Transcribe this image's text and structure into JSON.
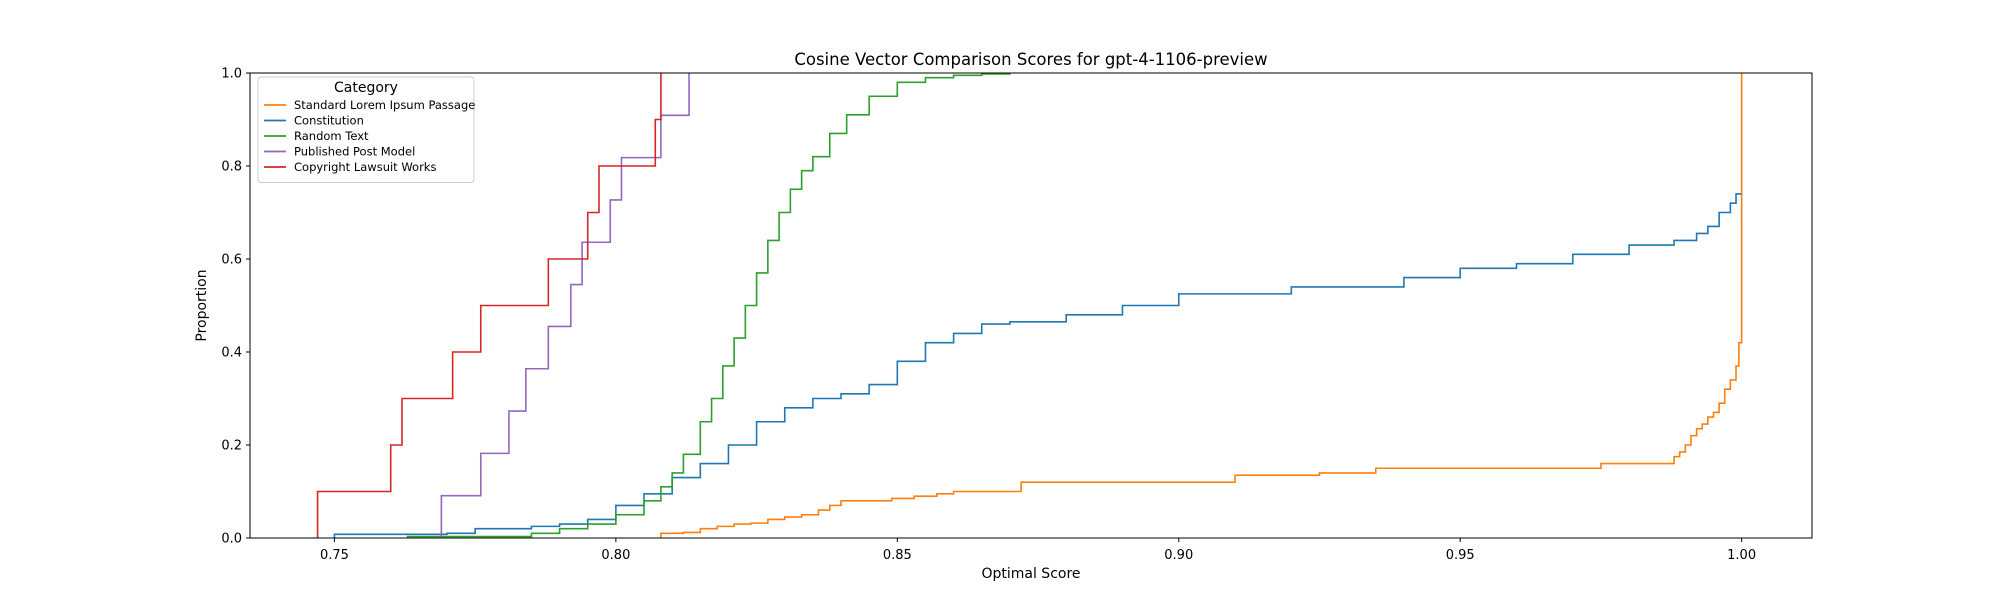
{
  "chart_data": {
    "type": "line",
    "title": "Cosine Vector Comparison Scores for gpt-4-1106-preview",
    "xlabel": "Optimal Score",
    "ylabel": "Proportion",
    "xlim": [
      0.735,
      1.0125
    ],
    "ylim": [
      0.0,
      1.0
    ],
    "xticks": [
      "0.75",
      "0.80",
      "0.85",
      "0.90",
      "0.95",
      "1.00"
    ],
    "yticks": [
      "0.0",
      "0.2",
      "0.4",
      "0.6",
      "0.8",
      "1.0"
    ],
    "grid": false,
    "step": true,
    "legend": {
      "title": "Category",
      "position": "top-left"
    },
    "series": [
      {
        "name": "Standard Lorem Ipsum Passage",
        "color": "#ff7f0e",
        "x": [
          0.808,
          0.812,
          0.815,
          0.818,
          0.821,
          0.824,
          0.827,
          0.83,
          0.833,
          0.836,
          0.838,
          0.84,
          0.845,
          0.849,
          0.853,
          0.857,
          0.86,
          0.866,
          0.872,
          0.885,
          0.895,
          0.905,
          0.91,
          0.925,
          0.935,
          0.95,
          0.963,
          0.975,
          0.986,
          0.988,
          0.989,
          0.99,
          0.991,
          0.992,
          0.993,
          0.994,
          0.995,
          0.996,
          0.997,
          0.998,
          0.999,
          0.9995,
          1.0
        ],
        "y": [
          0.01,
          0.012,
          0.02,
          0.025,
          0.03,
          0.032,
          0.04,
          0.045,
          0.05,
          0.06,
          0.07,
          0.08,
          0.08,
          0.085,
          0.09,
          0.095,
          0.1,
          0.1,
          0.12,
          0.12,
          0.12,
          0.12,
          0.135,
          0.14,
          0.15,
          0.15,
          0.15,
          0.16,
          0.16,
          0.175,
          0.185,
          0.2,
          0.22,
          0.235,
          0.245,
          0.26,
          0.27,
          0.29,
          0.32,
          0.34,
          0.37,
          0.42,
          1.0
        ]
      },
      {
        "name": "Constitution",
        "color": "#1f77b4",
        "x": [
          0.75,
          0.77,
          0.775,
          0.785,
          0.79,
          0.795,
          0.8,
          0.805,
          0.81,
          0.815,
          0.82,
          0.825,
          0.83,
          0.835,
          0.84,
          0.845,
          0.85,
          0.855,
          0.86,
          0.865,
          0.87,
          0.88,
          0.89,
          0.9,
          0.92,
          0.94,
          0.95,
          0.96,
          0.97,
          0.98,
          0.988,
          0.992,
          0.994,
          0.996,
          0.998,
          0.999,
          1.0
        ],
        "y": [
          0.008,
          0.01,
          0.02,
          0.025,
          0.03,
          0.04,
          0.07,
          0.095,
          0.13,
          0.16,
          0.2,
          0.25,
          0.28,
          0.3,
          0.31,
          0.33,
          0.38,
          0.42,
          0.44,
          0.46,
          0.465,
          0.48,
          0.5,
          0.525,
          0.54,
          0.56,
          0.58,
          0.59,
          0.61,
          0.63,
          0.64,
          0.655,
          0.67,
          0.7,
          0.72,
          0.74,
          0.74
        ]
      },
      {
        "name": "Random Text",
        "color": "#2ca02c",
        "x": [
          0.763,
          0.785,
          0.79,
          0.795,
          0.8,
          0.805,
          0.808,
          0.81,
          0.812,
          0.815,
          0.817,
          0.819,
          0.821,
          0.823,
          0.825,
          0.827,
          0.829,
          0.831,
          0.833,
          0.835,
          0.838,
          0.841,
          0.845,
          0.85,
          0.855,
          0.86,
          0.865,
          0.87
        ],
        "y": [
          0.003,
          0.01,
          0.02,
          0.03,
          0.05,
          0.08,
          0.11,
          0.14,
          0.18,
          0.25,
          0.3,
          0.37,
          0.43,
          0.5,
          0.57,
          0.64,
          0.7,
          0.75,
          0.79,
          0.82,
          0.87,
          0.91,
          0.95,
          0.98,
          0.99,
          0.995,
          0.998,
          1.0
        ]
      },
      {
        "name": "Published Post Model",
        "color": "#9467bd",
        "x": [
          0.769,
          0.776,
          0.781,
          0.784,
          0.788,
          0.792,
          0.794,
          0.799,
          0.801,
          0.808,
          0.809,
          0.813
        ],
        "y": [
          0.091,
          0.182,
          0.273,
          0.364,
          0.455,
          0.545,
          0.636,
          0.727,
          0.818,
          0.909,
          0.909,
          1.0
        ]
      },
      {
        "name": "Copyright Lawsuit Works",
        "color": "#d62728",
        "x": [
          0.747,
          0.76,
          0.762,
          0.771,
          0.776,
          0.788,
          0.795,
          0.797,
          0.807,
          0.808
        ],
        "y": [
          0.1,
          0.2,
          0.3,
          0.4,
          0.5,
          0.6,
          0.7,
          0.8,
          0.9,
          1.0
        ]
      }
    ]
  }
}
